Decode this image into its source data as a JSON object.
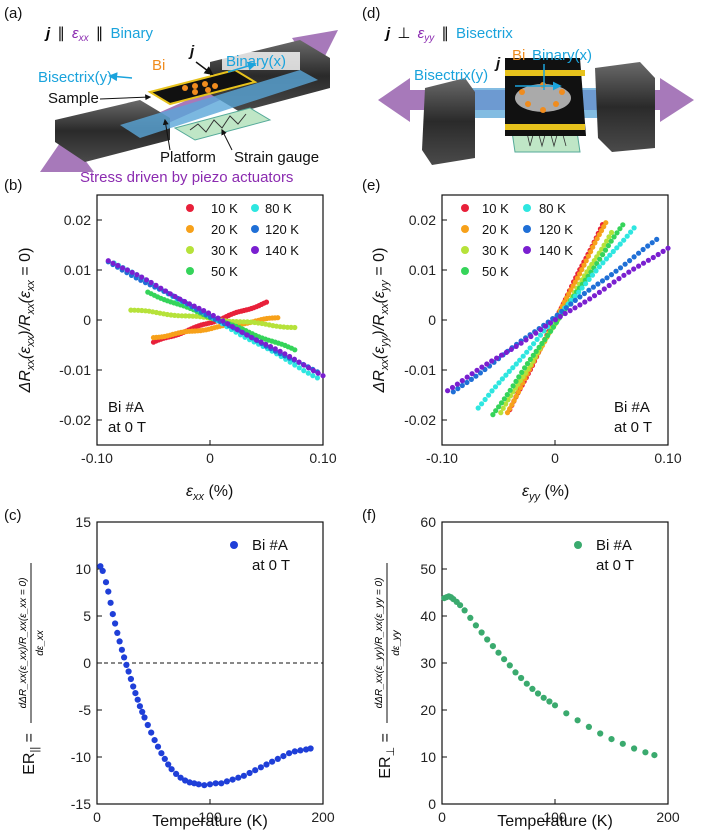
{
  "panels": {
    "a": "(a)",
    "b": "(b)",
    "c": "(c)",
    "d": "(d)",
    "e": "(e)",
    "f": "(f)"
  },
  "schematic_a": {
    "config_j": "j",
    "config_mid1": "∥",
    "config_eps": "ε",
    "config_eps_sub": "xx",
    "config_mid2": "∥",
    "config_dir": "Binary",
    "j_label": "j",
    "binary_label": "Binary(x)",
    "bi_label": "Bi",
    "bisectrix_label": "Bisectrix(y)",
    "sample_label": "Sample",
    "platform_label": "Platform",
    "strain_gauge_label": "Strain gauge",
    "stress_label": "Stress driven by piezo actuators"
  },
  "schematic_d": {
    "config_j": "j",
    "config_mid1": "⊥",
    "config_eps": "ε",
    "config_eps_sub": "yy",
    "config_mid2": "∥",
    "config_dir": "Bisectrix",
    "bi_label": "Bi",
    "j_label": "j",
    "binary_label": "Binary(x)",
    "bisectrix_label": "Bisectrix(y)"
  },
  "colors": {
    "10K": "#e8203a",
    "20K": "#f7a11a",
    "30K": "#b6e23a",
    "50K": "#35d45a",
    "80K": "#2ee6e0",
    "120K": "#1f6fd6",
    "140K": "#7a1fd0",
    "er_par": "#1f3fd8",
    "er_perp": "#3aaa6e"
  },
  "chart_data": [
    {
      "id": "b",
      "type": "scatter",
      "xlabel": "ε_xx (%)",
      "ylabel": "ΔR_xx(ε_xx)/R_xx(ε_xx = 0)",
      "xlim": [
        -0.1,
        0.1
      ],
      "ylim": [
        -0.025,
        0.025
      ],
      "xticks": [
        "-0.10",
        "0",
        "0.10"
      ],
      "yticks": [
        "0.02",
        "0.01",
        "0",
        "-0.01",
        "-0.02"
      ],
      "annotation": [
        "Bi #A",
        "at 0 T"
      ],
      "legend_position": "top-right",
      "series": [
        {
          "name": "10 K",
          "x": [
            -0.05,
            0.05
          ],
          "y": [
            -0.0045,
            0.0035
          ],
          "color_key": "10K"
        },
        {
          "name": "20 K",
          "x": [
            -0.05,
            0.06
          ],
          "y": [
            -0.0035,
            0.0005
          ],
          "color_key": "20K"
        },
        {
          "name": "30 K",
          "x": [
            -0.07,
            0.075
          ],
          "y": [
            0.002,
            -0.0015
          ],
          "color_key": "30K"
        },
        {
          "name": "50 K",
          "x": [
            -0.055,
            0.075
          ],
          "y": [
            0.0055,
            -0.006
          ],
          "color_key": "50K"
        },
        {
          "name": "80 K",
          "x": [
            -0.085,
            0.095
          ],
          "y": [
            0.0115,
            -0.0115
          ],
          "color_key": "80K"
        },
        {
          "name": "120 K",
          "x": [
            -0.09,
            0.095
          ],
          "y": [
            0.0115,
            -0.0105
          ],
          "color_key": "120K"
        },
        {
          "name": "140 K",
          "x": [
            -0.09,
            0.1
          ],
          "y": [
            0.012,
            -0.011
          ],
          "color_key": "140K"
        }
      ]
    },
    {
      "id": "e",
      "type": "scatter",
      "xlabel": "ε_yy (%)",
      "ylabel": "ΔR_xx(ε_yy)/R_xx(ε_yy = 0)",
      "xlim": [
        -0.1,
        0.1
      ],
      "ylim": [
        -0.025,
        0.025
      ],
      "xticks": [
        "-0.10",
        "0",
        "0.10"
      ],
      "yticks": [
        "0.02",
        "0.01",
        "0",
        "-0.01",
        "-0.02"
      ],
      "annotation": [
        "Bi #A",
        "at 0 T"
      ],
      "legend_position": "top-left",
      "series": [
        {
          "name": "10 K",
          "x": [
            -0.04,
            0.042
          ],
          "y": [
            -0.018,
            0.019
          ],
          "color_key": "10K"
        },
        {
          "name": "20 K",
          "x": [
            -0.042,
            0.045
          ],
          "y": [
            -0.0185,
            0.0195
          ],
          "color_key": "20K"
        },
        {
          "name": "30 K",
          "x": [
            -0.048,
            0.05
          ],
          "y": [
            -0.0185,
            0.0175
          ],
          "color_key": "30K"
        },
        {
          "name": "50 K",
          "x": [
            -0.055,
            0.06
          ],
          "y": [
            -0.019,
            0.019
          ],
          "color_key": "50K"
        },
        {
          "name": "80 K",
          "x": [
            -0.068,
            0.07
          ],
          "y": [
            -0.0175,
            0.0185
          ],
          "color_key": "80K"
        },
        {
          "name": "120 K",
          "x": [
            -0.09,
            0.09
          ],
          "y": [
            -0.0145,
            0.016
          ],
          "color_key": "120K"
        },
        {
          "name": "140 K",
          "x": [
            -0.095,
            0.1
          ],
          "y": [
            -0.014,
            0.0145
          ],
          "color_key": "140K"
        }
      ]
    },
    {
      "id": "c",
      "type": "scatter",
      "xlabel": "Temperature (K)",
      "ylabel_main": "ER",
      "ylabel_sub": "||",
      "ylabel_frac_num": "dΔR_xx(ε_xx)/R_xx(ε_xx = 0)",
      "ylabel_frac_den": "dε_xx",
      "xlim": [
        0,
        200
      ],
      "ylim": [
        -15,
        15
      ],
      "xticks": [
        "0",
        "100",
        "200"
      ],
      "yticks": [
        "15",
        "10",
        "5",
        "0",
        "-5",
        "-10",
        "-15"
      ],
      "legend": "Bi #A",
      "legend2": "at 0 T",
      "zero_line": true,
      "points": [
        [
          3,
          10.3
        ],
        [
          5,
          9.8
        ],
        [
          8,
          8.6
        ],
        [
          10,
          7.6
        ],
        [
          12,
          6.4
        ],
        [
          14,
          5.2
        ],
        [
          16,
          4.2
        ],
        [
          18,
          3.2
        ],
        [
          20,
          2.3
        ],
        [
          22,
          1.4
        ],
        [
          24,
          0.6
        ],
        [
          26,
          -0.2
        ],
        [
          28,
          -0.9
        ],
        [
          30,
          -1.7
        ],
        [
          32,
          -2.5
        ],
        [
          34,
          -3.2
        ],
        [
          36,
          -3.9
        ],
        [
          38,
          -4.6
        ],
        [
          40,
          -5.2
        ],
        [
          42,
          -5.8
        ],
        [
          45,
          -6.6
        ],
        [
          48,
          -7.4
        ],
        [
          51,
          -8.2
        ],
        [
          54,
          -8.9
        ],
        [
          57,
          -9.6
        ],
        [
          60,
          -10.2
        ],
        [
          63,
          -10.8
        ],
        [
          66,
          -11.3
        ],
        [
          70,
          -11.8
        ],
        [
          74,
          -12.2
        ],
        [
          78,
          -12.5
        ],
        [
          82,
          -12.7
        ],
        [
          86,
          -12.8
        ],
        [
          90,
          -12.9
        ],
        [
          95,
          -13.0
        ],
        [
          100,
          -12.9
        ],
        [
          105,
          -12.8
        ],
        [
          110,
          -12.8
        ],
        [
          115,
          -12.6
        ],
        [
          120,
          -12.4
        ],
        [
          125,
          -12.2
        ],
        [
          130,
          -12.0
        ],
        [
          135,
          -11.7
        ],
        [
          140,
          -11.4
        ],
        [
          145,
          -11.1
        ],
        [
          150,
          -10.8
        ],
        [
          155,
          -10.5
        ],
        [
          160,
          -10.2
        ],
        [
          165,
          -9.9
        ],
        [
          170,
          -9.6
        ],
        [
          175,
          -9.4
        ],
        [
          180,
          -9.3
        ],
        [
          185,
          -9.2
        ],
        [
          189,
          -9.1
        ]
      ]
    },
    {
      "id": "f",
      "type": "scatter",
      "xlabel": "Temperature (K)",
      "ylabel_main": "ER",
      "ylabel_sub": "⊥",
      "ylabel_frac_num": "dΔR_xx(ε_yy)/R_xx(ε_yy = 0)",
      "ylabel_frac_den": "dε_yy",
      "xlim": [
        0,
        200
      ],
      "ylim": [
        0,
        60
      ],
      "xticks": [
        "0",
        "100",
        "200"
      ],
      "yticks": [
        "60",
        "50",
        "40",
        "30",
        "20",
        "10",
        "0"
      ],
      "legend": "Bi #A",
      "legend2": "at 0 T",
      "points": [
        [
          2,
          43.8
        ],
        [
          4,
          44.0
        ],
        [
          6,
          44.2
        ],
        [
          8,
          44.0
        ],
        [
          10,
          43.6
        ],
        [
          13,
          43.0
        ],
        [
          16,
          42.3
        ],
        [
          20,
          41.2
        ],
        [
          25,
          39.6
        ],
        [
          30,
          38.0
        ],
        [
          35,
          36.5
        ],
        [
          40,
          35.0
        ],
        [
          45,
          33.6
        ],
        [
          50,
          32.2
        ],
        [
          55,
          30.8
        ],
        [
          60,
          29.5
        ],
        [
          65,
          28.0
        ],
        [
          70,
          26.8
        ],
        [
          75,
          25.6
        ],
        [
          80,
          24.5
        ],
        [
          85,
          23.5
        ],
        [
          90,
          22.6
        ],
        [
          95,
          21.8
        ],
        [
          100,
          21.0
        ],
        [
          110,
          19.3
        ],
        [
          120,
          17.8
        ],
        [
          130,
          16.4
        ],
        [
          140,
          15.0
        ],
        [
          150,
          13.8
        ],
        [
          160,
          12.8
        ],
        [
          170,
          11.8
        ],
        [
          180,
          11.0
        ],
        [
          188,
          10.4
        ]
      ]
    }
  ]
}
